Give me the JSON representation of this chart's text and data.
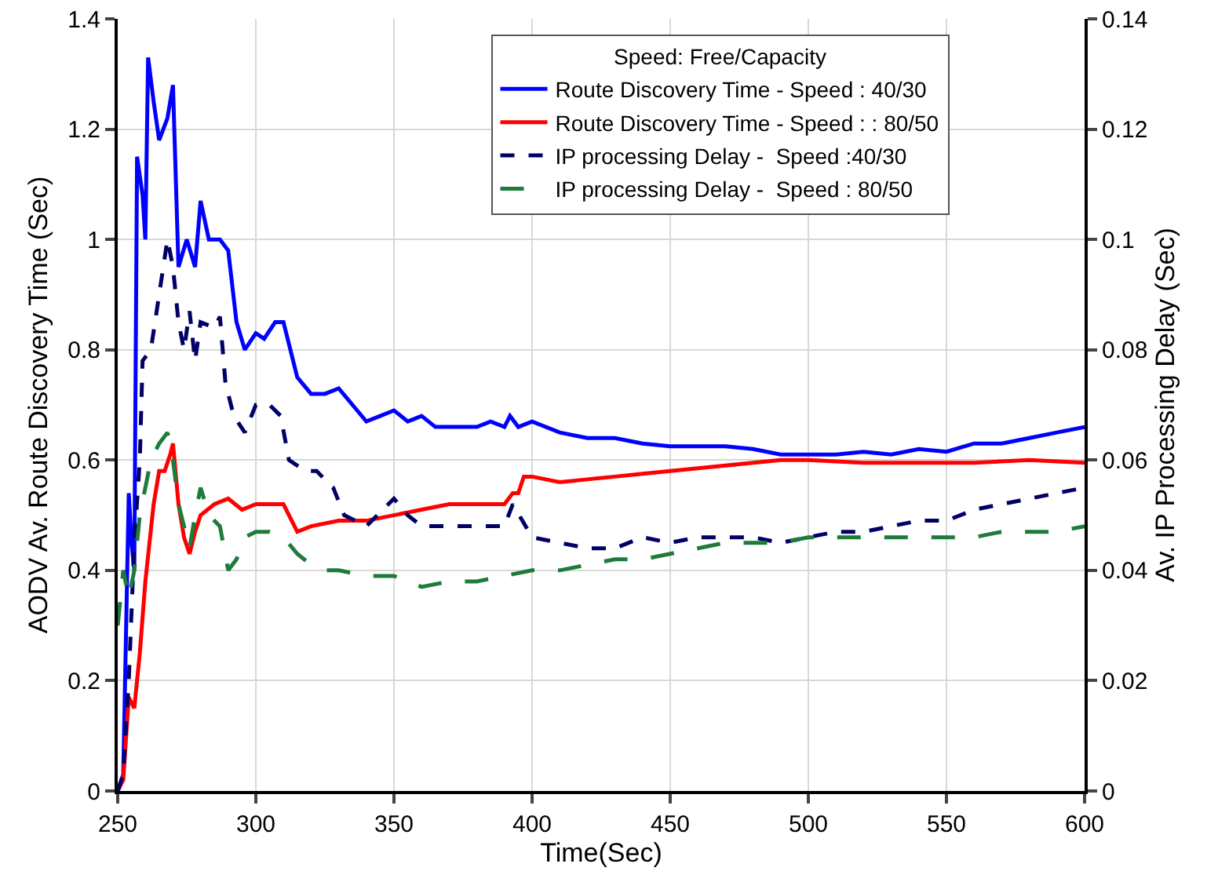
{
  "chart_data": {
    "type": "line",
    "xlabel": "Time(Sec)",
    "ylabel": "AODV Av. Route Discovery Time (Sec)",
    "y2label": "Av. IP Processing Delay (Sec)",
    "legend_title": "Speed: Free/Capacity",
    "legend": "top right",
    "grid": true,
    "marker": "none",
    "xlim": [
      250,
      600
    ],
    "xticks": [
      250,
      300,
      350,
      400,
      450,
      500,
      550,
      600
    ],
    "ylim": [
      0,
      1.4
    ],
    "yticks": [
      0,
      0.2,
      0.4,
      0.6,
      0.8,
      1,
      1.2,
      1.4
    ],
    "y2lim": [
      0,
      0.14
    ],
    "y2ticks": [
      0,
      0.02,
      0.04,
      0.06,
      0.08,
      0.1,
      0.12,
      0.14
    ],
    "series": [
      {
        "name": "Route Discovery Time - Speed : 40/30",
        "color": "#0000ff",
        "line_style": "solid",
        "x": [
          250,
          252,
          254,
          255,
          256,
          257,
          259,
          260,
          261,
          263,
          265,
          268,
          270,
          272,
          275,
          278,
          280,
          283,
          287,
          290,
          293,
          296,
          300,
          303,
          307,
          310,
          315,
          320,
          325,
          330,
          335,
          340,
          345,
          350,
          355,
          360,
          365,
          370,
          375,
          380,
          385,
          390,
          392,
          395,
          400,
          410,
          420,
          430,
          440,
          450,
          460,
          470,
          480,
          490,
          500,
          510,
          520,
          530,
          540,
          550,
          560,
          570,
          580,
          590,
          600
        ],
        "values": [
          0,
          0.03,
          0.54,
          0.45,
          0.4,
          1.15,
          1.08,
          1.0,
          1.33,
          1.25,
          1.18,
          1.22,
          1.28,
          0.95,
          1.0,
          0.95,
          1.07,
          1.0,
          1.0,
          0.98,
          0.85,
          0.8,
          0.83,
          0.82,
          0.85,
          0.85,
          0.75,
          0.72,
          0.72,
          0.73,
          0.7,
          0.67,
          0.68,
          0.69,
          0.67,
          0.68,
          0.66,
          0.66,
          0.66,
          0.66,
          0.67,
          0.66,
          0.68,
          0.66,
          0.67,
          0.65,
          0.64,
          0.64,
          0.63,
          0.625,
          0.625,
          0.625,
          0.62,
          0.61,
          0.61,
          0.61,
          0.615,
          0.61,
          0.62,
          0.615,
          0.63,
          0.63,
          0.64,
          0.65,
          0.66
        ]
      },
      {
        "name": "Route Discovery Time - Speed : : 80/50",
        "color": "#ff0000",
        "line_style": "solid",
        "x": [
          250,
          252,
          254,
          256,
          258,
          260,
          263,
          265,
          267,
          269,
          270,
          272,
          274,
          276,
          278,
          280,
          285,
          290,
          295,
          300,
          305,
          310,
          315,
          320,
          330,
          340,
          350,
          360,
          370,
          380,
          390,
          393,
          395,
          397,
          400,
          410,
          420,
          430,
          440,
          450,
          460,
          470,
          480,
          490,
          500,
          520,
          540,
          560,
          580,
          600
        ],
        "values": [
          0,
          0.02,
          0.17,
          0.15,
          0.25,
          0.38,
          0.52,
          0.58,
          0.58,
          0.61,
          0.63,
          0.52,
          0.46,
          0.43,
          0.47,
          0.5,
          0.52,
          0.53,
          0.51,
          0.52,
          0.52,
          0.52,
          0.47,
          0.48,
          0.49,
          0.49,
          0.5,
          0.51,
          0.52,
          0.52,
          0.52,
          0.54,
          0.54,
          0.57,
          0.57,
          0.56,
          0.565,
          0.57,
          0.575,
          0.58,
          0.585,
          0.59,
          0.595,
          0.6,
          0.6,
          0.595,
          0.595,
          0.595,
          0.6,
          0.595
        ]
      },
      {
        "name": "IP processing Delay -  Speed :40/30",
        "color": "#000066",
        "line_style": "dotted",
        "axis": "y2",
        "x": [
          250,
          252,
          254,
          256,
          258,
          259,
          262,
          265,
          268,
          270,
          272,
          274,
          276,
          278,
          280,
          285,
          287,
          289,
          292,
          296,
          300,
          305,
          309,
          312,
          318,
          322,
          328,
          332,
          340,
          350,
          355,
          360,
          370,
          380,
          390,
          393,
          400,
          410,
          420,
          430,
          440,
          450,
          460,
          470,
          480,
          490,
          500,
          510,
          520,
          530,
          540,
          550,
          560,
          570,
          580,
          590,
          600
        ],
        "values": [
          0,
          0.003,
          0.02,
          0.045,
          0.06,
          0.078,
          0.08,
          0.09,
          0.1,
          0.095,
          0.085,
          0.08,
          0.087,
          0.078,
          0.085,
          0.084,
          0.086,
          0.074,
          0.068,
          0.065,
          0.07,
          0.07,
          0.068,
          0.06,
          0.058,
          0.058,
          0.055,
          0.05,
          0.048,
          0.053,
          0.05,
          0.048,
          0.048,
          0.048,
          0.048,
          0.052,
          0.046,
          0.045,
          0.044,
          0.044,
          0.046,
          0.045,
          0.046,
          0.046,
          0.046,
          0.045,
          0.046,
          0.047,
          0.047,
          0.048,
          0.049,
          0.049,
          0.051,
          0.052,
          0.053,
          0.054,
          0.055
        ]
      },
      {
        "name": "IP processing Delay -  Speed : 80/50",
        "color": "#1e7b3c",
        "line_style": "dashed",
        "axis": "y2",
        "x": [
          250,
          252,
          254,
          256,
          258,
          260,
          262,
          265,
          268,
          270,
          272,
          274,
          276,
          278,
          280,
          283,
          287,
          290,
          293,
          296,
          300,
          305,
          310,
          315,
          320,
          325,
          330,
          340,
          350,
          360,
          370,
          380,
          390,
          400,
          410,
          420,
          430,
          440,
          450,
          460,
          470,
          480,
          490,
          500,
          510,
          520,
          530,
          540,
          550,
          560,
          570,
          580,
          590,
          600
        ],
        "values": [
          0.03,
          0.04,
          0.035,
          0.04,
          0.05,
          0.055,
          0.06,
          0.063,
          0.065,
          0.06,
          0.052,
          0.048,
          0.044,
          0.05,
          0.055,
          0.05,
          0.048,
          0.04,
          0.042,
          0.046,
          0.047,
          0.047,
          0.046,
          0.043,
          0.041,
          0.04,
          0.04,
          0.039,
          0.039,
          0.037,
          0.038,
          0.038,
          0.039,
          0.04,
          0.04,
          0.041,
          0.042,
          0.042,
          0.043,
          0.044,
          0.045,
          0.045,
          0.045,
          0.046,
          0.046,
          0.046,
          0.046,
          0.046,
          0.046,
          0.046,
          0.047,
          0.047,
          0.047,
          0.048
        ]
      }
    ]
  }
}
